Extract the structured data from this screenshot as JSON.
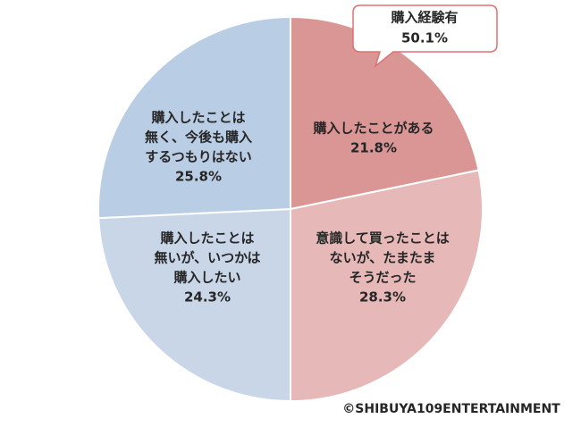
{
  "chart_data": {
    "type": "pie",
    "categories": [
      [
        "購入したことがある"
      ],
      [
        "意識して買ったことは",
        "ないが、たまたま",
        "そうだった"
      ],
      [
        "購入したことは",
        "無いが、いつかは",
        "購入したい"
      ],
      [
        "購入したことは",
        "無く、今後も購入",
        "するつもりはない"
      ]
    ],
    "values": [
      21.8,
      28.3,
      24.3,
      25.8
    ],
    "value_labels": [
      "21.8%",
      "28.3%",
      "24.3%",
      "25.8%"
    ],
    "colors": [
      "#d99694",
      "#e6b9b8",
      "#c9d6e8",
      "#b9cde5"
    ],
    "callout": {
      "text": "購入経験有",
      "value": 50.1,
      "value_label": "50.1%"
    },
    "credit": "©SHIBUYA109ENTERTAINMENT"
  }
}
